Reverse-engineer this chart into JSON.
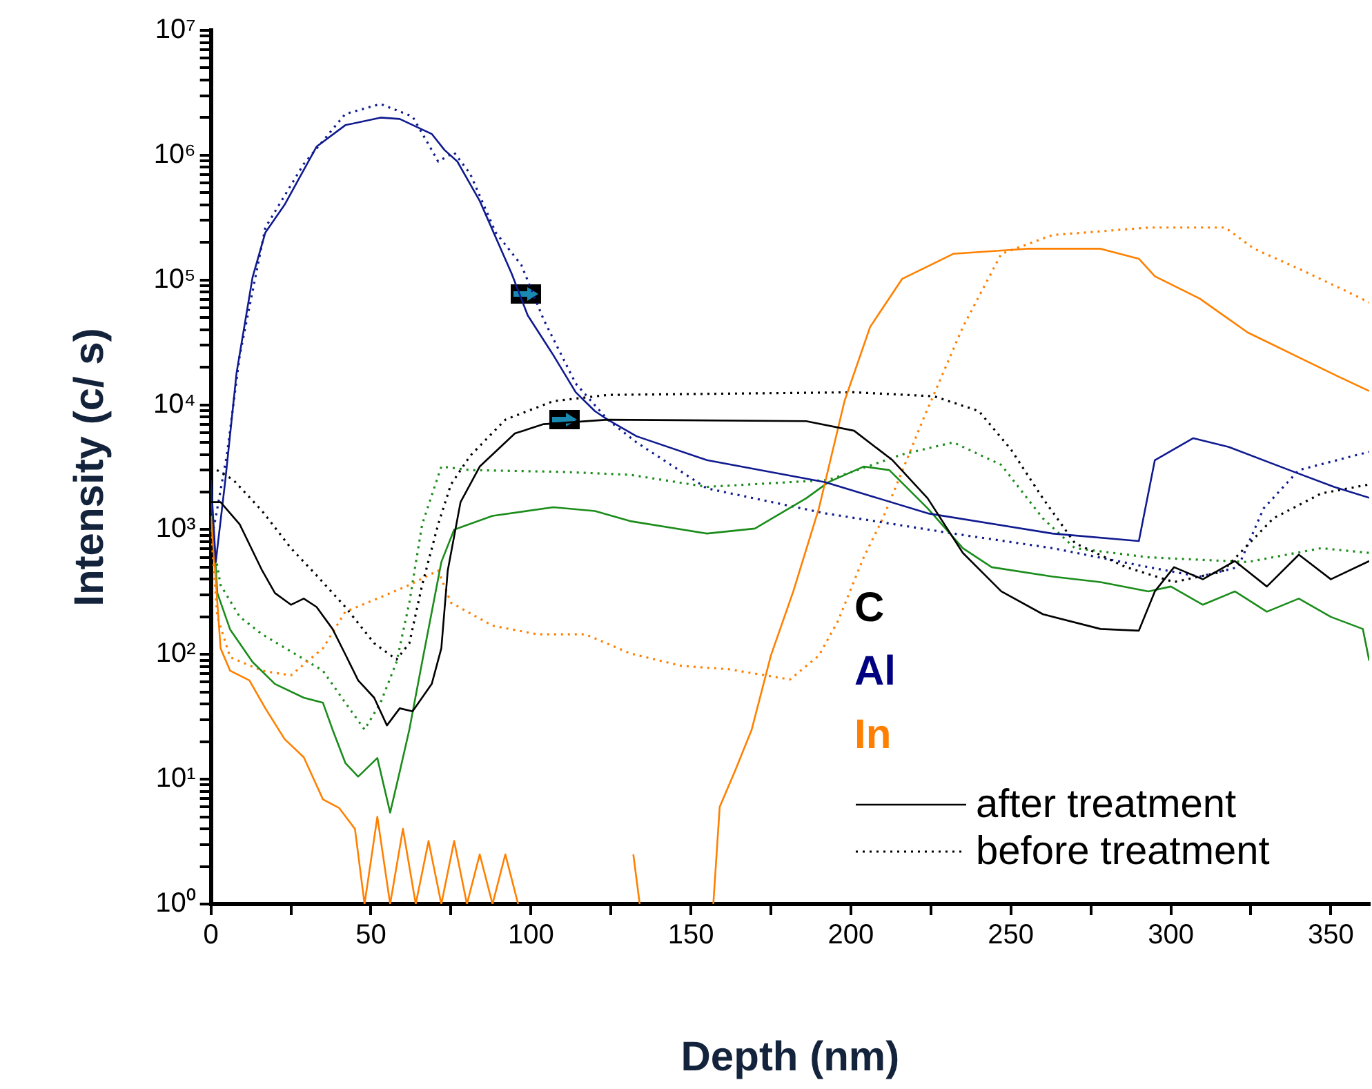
{
  "chart_data": {
    "type": "line",
    "xlabel": "Depth (nm)",
    "ylabel": "Intensity (c/ s)",
    "log": "y",
    "marker": "none",
    "legend": "bottom right",
    "xlim": [
      0,
      362
    ],
    "xticks": [
      0,
      {
        "value": 25,
        "label": null
      },
      50,
      {
        "value": 75,
        "label": null
      },
      100,
      {
        "value": 125,
        "label": null
      },
      150,
      {
        "value": 175,
        "label": null
      },
      200,
      {
        "value": 225,
        "label": null
      },
      250,
      {
        "value": 275,
        "label": null
      },
      300,
      {
        "value": 325,
        "label": null
      },
      350
    ],
    "ylim": [
      1,
      10000000
    ],
    "yticks": [
      {
        "value": 1,
        "label": "10⁰"
      },
      {
        "value": 2,
        "label": null
      },
      {
        "value": 3,
        "label": null
      },
      {
        "value": 4,
        "label": null
      },
      {
        "value": 5,
        "label": null
      },
      {
        "value": 6,
        "label": null
      },
      {
        "value": 7,
        "label": null
      },
      {
        "value": 8,
        "label": null
      },
      {
        "value": 9,
        "label": null
      },
      {
        "value": 10,
        "label": "10¹"
      },
      {
        "value": 20,
        "label": null
      },
      {
        "value": 30,
        "label": null
      },
      {
        "value": 40,
        "label": null
      },
      {
        "value": 50,
        "label": null
      },
      {
        "value": 60,
        "label": null
      },
      {
        "value": 70,
        "label": null
      },
      {
        "value": 80,
        "label": null
      },
      {
        "value": 90,
        "label": null
      },
      {
        "value": 100,
        "label": "10²"
      },
      {
        "value": 200,
        "label": null
      },
      {
        "value": 300,
        "label": null
      },
      {
        "value": 400,
        "label": null
      },
      {
        "value": 500,
        "label": null
      },
      {
        "value": 600,
        "label": null
      },
      {
        "value": 700,
        "label": null
      },
      {
        "value": 800,
        "label": null
      },
      {
        "value": 900,
        "label": null
      },
      {
        "value": 1000,
        "label": "10³"
      },
      {
        "value": 2000,
        "label": null
      },
      {
        "value": 3000,
        "label": null
      },
      {
        "value": 4000,
        "label": null
      },
      {
        "value": 5000,
        "label": null
      },
      {
        "value": 6000,
        "label": null
      },
      {
        "value": 7000,
        "label": null
      },
      {
        "value": 8000,
        "label": null
      },
      {
        "value": 9000,
        "label": null
      },
      {
        "value": 10000,
        "label": "10⁴"
      },
      {
        "value": 20000,
        "label": null
      },
      {
        "value": 30000,
        "label": null
      },
      {
        "value": 40000,
        "label": null
      },
      {
        "value": 50000,
        "label": null
      },
      {
        "value": 60000,
        "label": null
      },
      {
        "value": 70000,
        "label": null
      },
      {
        "value": 80000,
        "label": null
      },
      {
        "value": 90000,
        "label": null
      },
      {
        "value": 100000,
        "label": "10⁵"
      },
      {
        "value": 200000,
        "label": null
      },
      {
        "value": 300000,
        "label": null
      },
      {
        "value": 400000,
        "label": null
      },
      {
        "value": 500000,
        "label": null
      },
      {
        "value": 600000,
        "label": null
      },
      {
        "value": 700000,
        "label": null
      },
      {
        "value": 800000,
        "label": null
      },
      {
        "value": 900000,
        "label": null
      },
      {
        "value": 1000000,
        "label": "10⁶"
      },
      {
        "value": 2000000,
        "label": null
      },
      {
        "value": 3000000,
        "label": null
      },
      {
        "value": 4000000,
        "label": null
      },
      {
        "value": 5000000,
        "label": null
      },
      {
        "value": 6000000,
        "label": null
      },
      {
        "value": 7000000,
        "label": null
      },
      {
        "value": 8000000,
        "label": null
      },
      {
        "value": 9000000,
        "label": null
      },
      {
        "value": 10000000,
        "label": "10⁷"
      }
    ],
    "annotations": [
      "after treatment",
      "before treatment"
    ],
    "series": [
      {
        "name": "C",
        "color": "#000000",
        "line_style": "solid",
        "x": [
          0,
          3,
          9,
          16,
          20,
          25,
          29,
          33,
          38,
          42,
          46,
          51,
          55,
          59,
          63,
          69,
          72,
          74,
          78,
          84,
          95,
          104,
          124,
          186,
          201,
          213,
          224,
          235,
          247,
          260,
          278,
          290,
          295,
          301,
          310,
          320,
          330,
          340,
          350,
          362
        ],
        "values": [
          1660,
          1660,
          1100,
          470,
          310,
          250,
          280,
          240,
          160,
          100,
          62,
          45,
          27,
          37,
          35,
          58,
          112,
          470,
          1660,
          3200,
          5900,
          7000,
          7600,
          7400,
          6200,
          3600,
          1780,
          650,
          320,
          210,
          160,
          155,
          320,
          500,
          400,
          560,
          350,
          630,
          400,
          560
        ]
      },
      {
        "name": "Al",
        "color": "#0f1a8f",
        "line_style": "solid",
        "x": [
          0,
          1.5,
          4.5,
          8,
          13,
          17,
          23,
          33,
          42,
          53,
          59,
          69,
          73,
          77,
          84,
          94,
          99,
          107,
          114,
          120,
          124,
          133,
          155,
          192,
          224,
          263,
          290,
          295,
          307,
          318,
          337,
          351,
          362
        ],
        "values": [
          2500,
          550,
          2500,
          18000,
          105000,
          240000,
          400000,
          1170000,
          1740000,
          2000000,
          1950000,
          1480000,
          1100000,
          890000,
          430000,
          112000,
          52000,
          25000,
          12600,
          8900,
          7600,
          5600,
          3600,
          2400,
          1350,
          930,
          810,
          3600,
          5400,
          4600,
          3000,
          2200,
          1800
        ]
      },
      {
        "name": "In",
        "color": "#ff8000",
        "line_style": "solid",
        "x": [
          0,
          1,
          3,
          6,
          12,
          17,
          23,
          29,
          35,
          40,
          45,
          48,
          52,
          56,
          60,
          64,
          68,
          72,
          76,
          80,
          84,
          88,
          92,
          96,
          100,
          128,
          132,
          134,
          136,
          157,
          159,
          164,
          169,
          175,
          182,
          190,
          198,
          206,
          216,
          232,
          255,
          278,
          290,
          295,
          309,
          324,
          340,
          352,
          362
        ],
        "values": [
          1290,
          600,
          112,
          74,
          62,
          37,
          21,
          15,
          6.9,
          5.9,
          4,
          1,
          5,
          1,
          4,
          1,
          3.2,
          1,
          3.2,
          1,
          2.5,
          1,
          2.5,
          1,
          null,
          null,
          2.5,
          1,
          null,
          1,
          6,
          12,
          25,
          98,
          320,
          1480,
          10700,
          42000,
          102000,
          162000,
          178000,
          178000,
          148000,
          107000,
          71000,
          38000,
          24000,
          17000,
          12900
        ]
      },
      {
        "color": "#1a8c1a",
        "line_style": "solid",
        "x": [
          0,
          2,
          6,
          13,
          20,
          29,
          35,
          38,
          42,
          46,
          52,
          56,
          59,
          62,
          66,
          72,
          76,
          88,
          107,
          120,
          131,
          155,
          170,
          186,
          193,
          204,
          212,
          224,
          235,
          244,
          263,
          278,
          293,
          300,
          310,
          320,
          330,
          340,
          350,
          360,
          362
        ],
        "values": [
          2140,
          310,
          158,
          87,
          58,
          45,
          41,
          25,
          13.5,
          10.5,
          14.8,
          5.4,
          11.5,
          25,
          87,
          550,
          1000,
          1290,
          1510,
          1410,
          1170,
          930,
          1020,
          1780,
          2400,
          3200,
          3000,
          1480,
          710,
          500,
          420,
          380,
          320,
          350,
          250,
          320,
          220,
          280,
          200,
          160,
          89
        ]
      },
      {
        "color": "#000000",
        "line_style": "dotted",
        "x": [
          0,
          7,
          16,
          25,
          33,
          42,
          51,
          58,
          62,
          66,
          71,
          75,
          81,
          92,
          107,
          124,
          201,
          226,
          240,
          250,
          260,
          270,
          286,
          301,
          316,
          332,
          347,
          362
        ],
        "values": [
          3200,
          2500,
          1410,
          710,
          430,
          240,
          123,
          91,
          123,
          360,
          1100,
          2300,
          3900,
          7600,
          10700,
          12000,
          12600,
          11700,
          8900,
          4400,
          1780,
          780,
          500,
          380,
          460,
          1230,
          1950,
          2300
        ]
      },
      {
        "color": "#0f1a8f",
        "line_style": "dotted",
        "x": [
          0,
          1.5,
          5,
          9,
          17,
          29,
          42,
          53,
          63,
          69,
          71,
          76,
          81,
          89,
          97,
          104,
          114,
          124,
          133,
          155,
          192,
          232,
          263,
          293,
          309,
          321,
          329,
          340,
          362
        ],
        "values": [
          790,
          1260,
          4000,
          25000,
          263000,
          850000,
          2140000,
          2570000,
          2040000,
          1100000,
          890000,
          1050000,
          710000,
          240000,
          132000,
          48000,
          14800,
          7600,
          5000,
          2140,
          1350,
          930,
          710,
          500,
          420,
          500,
          1480,
          3000,
          4200
        ]
      },
      {
        "color": "#ff8000",
        "line_style": "dotted",
        "x": [
          0,
          2,
          6,
          16,
          25,
          35,
          42,
          52,
          62,
          71,
          75,
          88,
          102,
          117,
          131,
          147,
          162,
          181,
          190,
          196,
          204,
          210,
          223,
          235,
          247,
          263,
          293,
          317,
          326,
          340,
          355,
          362
        ],
        "values": [
          1000,
          200,
          95,
          74,
          68,
          112,
          220,
          280,
          360,
          470,
          260,
          170,
          145,
          145,
          102,
          81,
          76,
          63,
          98,
          186,
          600,
          1230,
          8100,
          42000,
          162000,
          229000,
          263000,
          263000,
          178000,
          123000,
          81000,
          66000
        ]
      },
      {
        "color": "#1a8c1a",
        "line_style": "dotted",
        "x": [
          0,
          3,
          9,
          16,
          26,
          35,
          42,
          48,
          53,
          58,
          62,
          66,
          72,
          81,
          110,
          131,
          155,
          193,
          216,
          232,
          247,
          260,
          270,
          293,
          324,
          347,
          362
        ],
        "values": [
          1000,
          360,
          200,
          145,
          102,
          74,
          41,
          25,
          41,
          87,
          260,
          1100,
          3200,
          3000,
          2900,
          2750,
          2200,
          2500,
          4000,
          5000,
          3300,
          1230,
          710,
          600,
          550,
          710,
          650
        ]
      }
    ]
  }
}
